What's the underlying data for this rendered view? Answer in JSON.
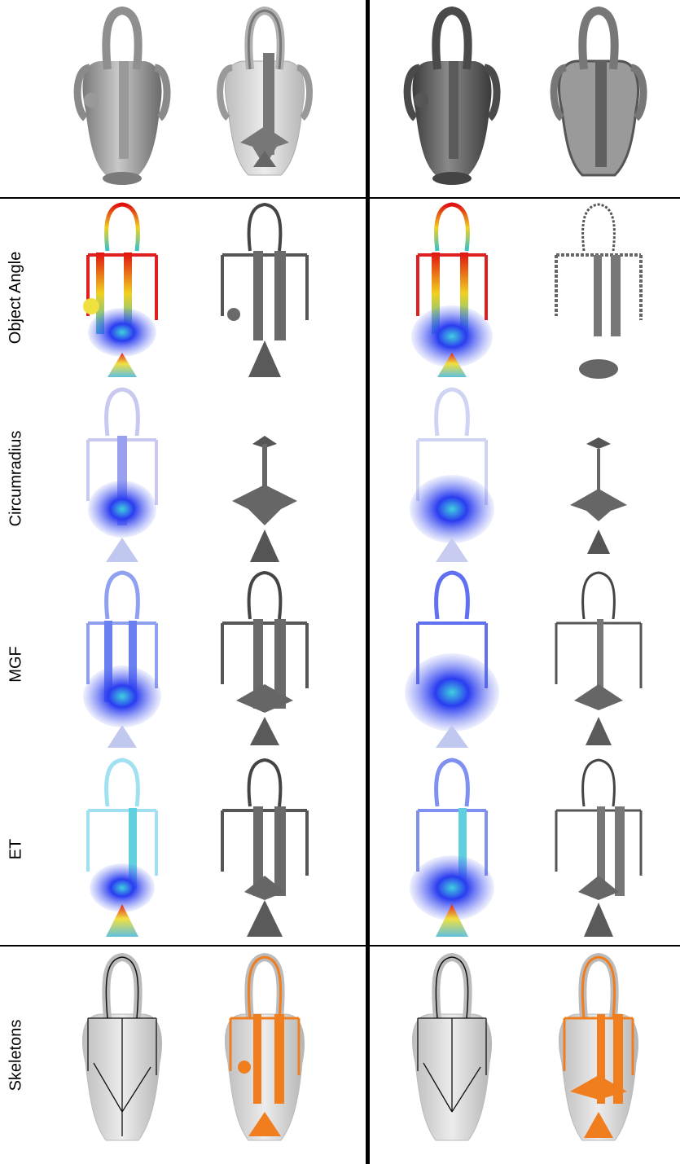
{
  "row_labels": {
    "object_angle": "Object Angle",
    "circumradius": "Circumradius",
    "mgf": "MGF",
    "et": "ET",
    "skeletons": "Skeletons"
  },
  "colors": {
    "line": "#000000",
    "mesh_gray": "#8a8a8a",
    "mesh_dark": "#5a5a5a",
    "skeleton_orange": "#f07d1e",
    "heat_blue": "#2a3cf0",
    "heat_red": "#e01010",
    "heat_yellow": "#f0e040"
  }
}
